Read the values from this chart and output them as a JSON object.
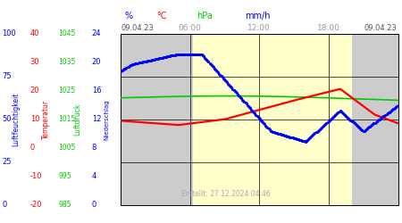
{
  "title_date": "09.04.23",
  "footer": "Erstellt: 27.12.2024 04:46",
  "x_tick_hours": [
    6,
    12,
    18
  ],
  "x_tick_labels": [
    "06:00",
    "12:00",
    "18:00"
  ],
  "background_day": "#ffffcc",
  "background_night": "#cccccc",
  "grid_color": "#000000",
  "sunrise_hour": 6.25,
  "sunset_hour": 20.0,
  "hum_color": "#0000ff",
  "temp_color": "#ff0000",
  "pres_color": "#00cc00",
  "hum_ticks": [
    0,
    25,
    50,
    75,
    100
  ],
  "temp_ticks": [
    -20,
    -10,
    0,
    10,
    20,
    30,
    40
  ],
  "temp_min": -20,
  "temp_max": 40,
  "pres_ticks": [
    985,
    995,
    1005,
    1015,
    1025,
    1035,
    1045
  ],
  "pres_min": 985,
  "pres_max": 1045,
  "prec_ticks": [
    0,
    4,
    8,
    12,
    16,
    20,
    24
  ],
  "prec_min": 0,
  "prec_max": 24,
  "unit_hum": "%",
  "unit_temp": "°C",
  "unit_pres": "hPa",
  "unit_prec": "mm/h",
  "label_hum": "Luftfeuchtigkeit",
  "label_temp": "Temperatur",
  "label_pres": "Luftdruck",
  "label_prec": "Niederschlag"
}
